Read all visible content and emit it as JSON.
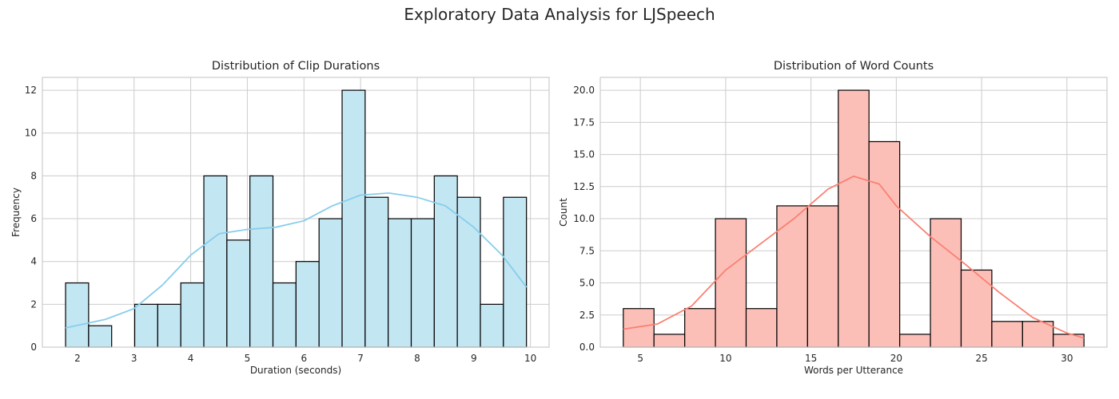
{
  "suptitle": "Exploratory Data Analysis for LJSpeech",
  "chart_data": [
    {
      "type": "histogram",
      "title": "Distribution of Clip Durations",
      "xlabel": "Duration (seconds)",
      "ylabel": "Frequency",
      "xlim": [
        1.38,
        10.33
      ],
      "ylim": [
        0,
        12.6
      ],
      "xticks": [
        2,
        3,
        4,
        5,
        6,
        7,
        8,
        9,
        10
      ],
      "yticks": [
        0,
        2,
        4,
        6,
        8,
        10,
        12
      ],
      "bin_range": [
        1.79,
        9.93
      ],
      "counts": [
        3,
        1,
        0,
        2,
        2,
        3,
        8,
        5,
        8,
        3,
        4,
        6,
        12,
        7,
        6,
        6,
        8,
        7,
        2,
        7
      ],
      "bar_color": "#c3e6f3",
      "line_color": "#87ceeb",
      "grid": true,
      "kde": {
        "x": [
          1.79,
          2.5,
          3,
          3.5,
          4,
          4.5,
          5,
          5.5,
          6,
          6.5,
          7,
          7.5,
          8,
          8.5,
          9,
          9.5,
          9.93
        ],
        "y": [
          0.9,
          1.3,
          1.8,
          2.9,
          4.3,
          5.3,
          5.5,
          5.6,
          5.9,
          6.6,
          7.1,
          7.2,
          7.0,
          6.6,
          5.6,
          4.3,
          2.8
        ]
      }
    },
    {
      "type": "histogram",
      "title": "Distribution of Word Counts",
      "xlabel": "Words per Utterance",
      "ylabel": "Count",
      "xlim": [
        2.65,
        32.35
      ],
      "ylim": [
        0,
        21
      ],
      "xticks": [
        5,
        10,
        15,
        20,
        25,
        30
      ],
      "yticks": [
        "0.0",
        "2.5",
        "5.0",
        "7.5",
        "10.0",
        "12.5",
        "15.0",
        "17.5",
        "20.0"
      ],
      "bin_range": [
        4,
        31
      ],
      "counts": [
        3,
        1,
        3,
        10,
        3,
        11,
        11,
        20,
        16,
        1,
        10,
        6,
        2,
        2,
        1
      ],
      "bar_color": "#fcbfb8",
      "line_color": "#fa8072",
      "grid": true,
      "kde": {
        "x": [
          4,
          6,
          8,
          10,
          12,
          14,
          16,
          17.5,
          19,
          20,
          22,
          24,
          26,
          28,
          30,
          31
        ],
        "y": [
          1.4,
          1.8,
          3.2,
          6.0,
          8.0,
          10.0,
          12.3,
          13.3,
          12.7,
          11.0,
          8.6,
          6.5,
          4.3,
          2.3,
          1.1,
          0.7
        ]
      }
    }
  ]
}
